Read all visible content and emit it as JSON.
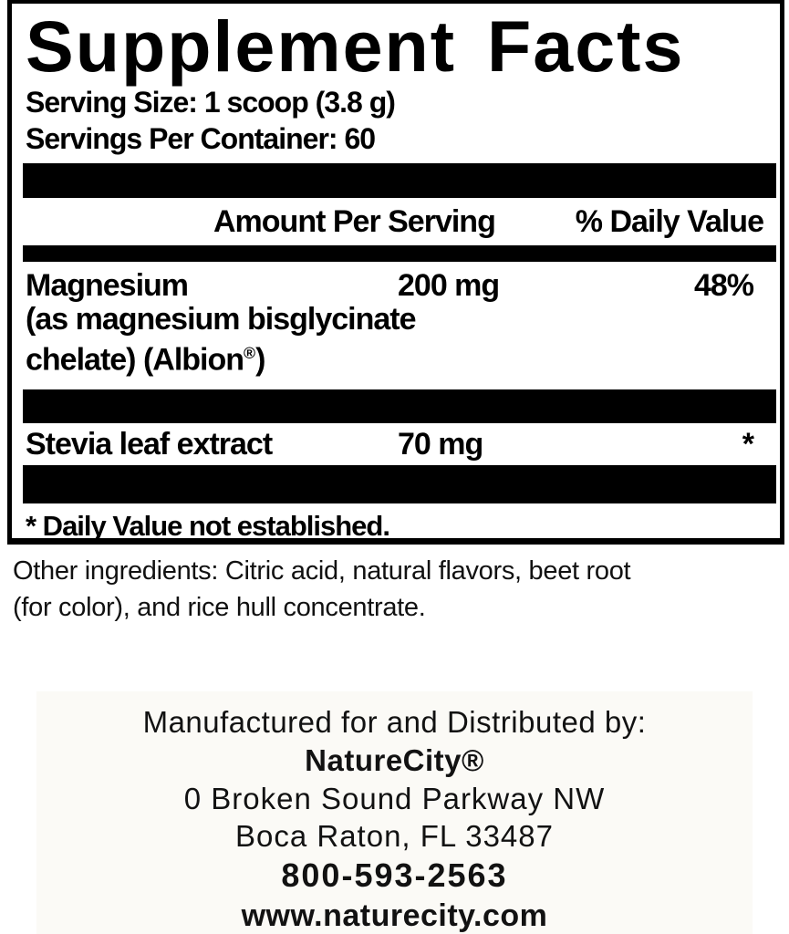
{
  "label": {
    "title": "Supplement Facts",
    "serving_size": "Serving Size: 1 scoop (3.8 g)",
    "servings_per_container": "Servings Per Container: 60",
    "columns": {
      "amount": "Amount Per Serving",
      "daily_value": "% Daily Value"
    },
    "nutrients": [
      {
        "name": "Magnesium",
        "amount": "200 mg",
        "daily_value": "48%",
        "detail_line1": "(as magnesium bisglycinate",
        "detail_line2_pre": "chelate) (Albion",
        "detail_line2_reg": "®",
        "detail_line2_post": ")"
      },
      {
        "name": "Stevia leaf extract",
        "amount": "70 mg",
        "daily_value": "*"
      }
    ],
    "footnote": "* Daily Value not established."
  },
  "other_ingredients": {
    "lines": [
      "Other ingredients: Citric acid, natural flavors, beet root",
      "(for color), and rice hull concentrate."
    ]
  },
  "distributor": {
    "intro": "Manufactured for and Distributed by:",
    "name": "NatureCity®",
    "address_line1": "0 Broken Sound Parkway NW",
    "address_line2": "Boca Raton, FL 33487",
    "phone": "800-593-2563",
    "website": "www.naturecity.com"
  },
  "colors": {
    "text": "#000000",
    "divider_bar": "#000000",
    "background": "#ffffff"
  }
}
